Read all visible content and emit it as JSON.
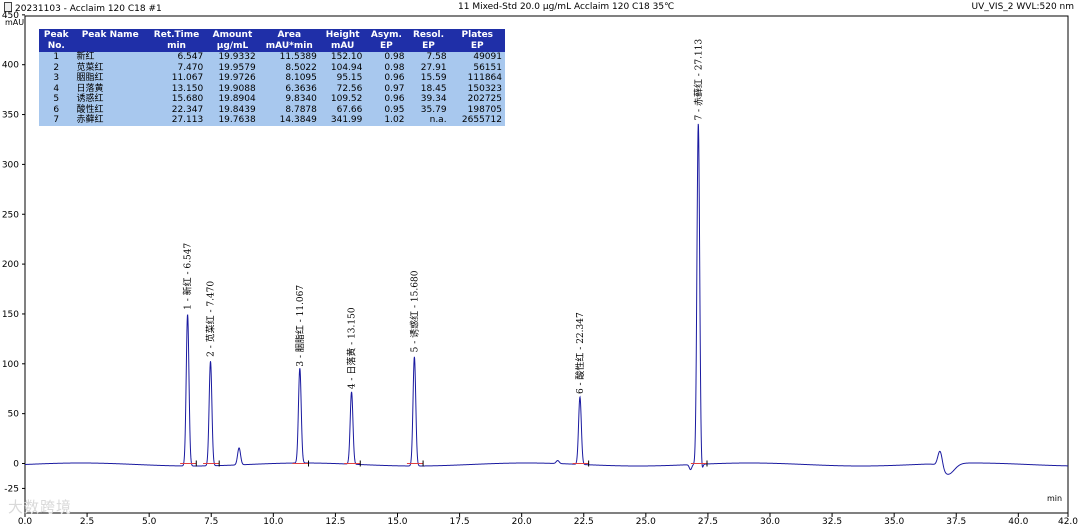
{
  "header": {
    "left": "20231103 - Acclaim 120 C18 #1",
    "middle": "11 Mixed-Std 20.0 µg/mL Acclaim  120  C18  35℃",
    "right": "UV_VIS_2 WVL:520 nm"
  },
  "watermark": "大数跨境",
  "peak_table": {
    "columns": [
      [
        "Peak",
        "No."
      ],
      [
        "Peak Name",
        ""
      ],
      [
        "Ret.Time",
        "min"
      ],
      [
        "Amount",
        "µg/mL"
      ],
      [
        "Area",
        "mAU*min"
      ],
      [
        "Height",
        "mAU"
      ],
      [
        "Asym.",
        "EP"
      ],
      [
        "Resol.",
        "EP"
      ],
      [
        "Plates",
        "EP"
      ]
    ],
    "rows": [
      [
        "1",
        "新红",
        "6.547",
        "19.9332",
        "11.5389",
        "152.10",
        "0.98",
        "7.58",
        "49091"
      ],
      [
        "2",
        "苋菜红",
        "7.470",
        "19.9579",
        "8.5022",
        "104.94",
        "0.98",
        "27.91",
        "56151"
      ],
      [
        "3",
        "胭脂红",
        "11.067",
        "19.9726",
        "8.1095",
        "95.15",
        "0.96",
        "15.59",
        "111864"
      ],
      [
        "4",
        "日落黄",
        "13.150",
        "19.9088",
        "6.3636",
        "72.56",
        "0.97",
        "18.45",
        "150323"
      ],
      [
        "5",
        "诱惑红",
        "15.680",
        "19.8904",
        "9.8340",
        "109.52",
        "0.96",
        "39.34",
        "202725"
      ],
      [
        "6",
        "酸性红",
        "22.347",
        "19.8439",
        "8.7878",
        "67.66",
        "0.95",
        "35.79",
        "198705"
      ],
      [
        "7",
        "赤藓红",
        "27.113",
        "19.7638",
        "14.3849",
        "341.99",
        "1.02",
        "n.a.",
        "2655712"
      ]
    ]
  },
  "chart_data": {
    "type": "line",
    "xlabel": "min",
    "ylabel": "mAU",
    "xlim": [
      0.0,
      42.0
    ],
    "ylim": [
      -25,
      450
    ],
    "x_ticks": [
      "0.0",
      "2.5",
      "5.0",
      "7.5",
      "10.0",
      "12.5",
      "15.0",
      "17.5",
      "20.0",
      "22.5",
      "25.0",
      "27.5",
      "30.0",
      "32.5",
      "35.0",
      "37.5",
      "40.0",
      "42.0"
    ],
    "x_tick_values": [
      0,
      2.5,
      5,
      7.5,
      10,
      12.5,
      15,
      17.5,
      20,
      22.5,
      25,
      27.5,
      30,
      32.5,
      35,
      37.5,
      40,
      42
    ],
    "y_ticks": [
      -25,
      0,
      50,
      100,
      150,
      200,
      250,
      300,
      350,
      400,
      450
    ],
    "series_color": "#1a1aa0",
    "peaks": [
      {
        "rt": 6.547,
        "height": 152.1,
        "label": "1 - 新红 - 6.547"
      },
      {
        "rt": 7.47,
        "height": 104.94,
        "label": "2 - 苋菜红 - 7.470"
      },
      {
        "rt": 11.067,
        "height": 95.15,
        "label": "3 - 胭脂红 - 11.067"
      },
      {
        "rt": 13.15,
        "height": 72.56,
        "label": "4 - 日落黄 - 13.150"
      },
      {
        "rt": 15.68,
        "height": 109.52,
        "label": "5 - 诱惑红 - 15.680"
      },
      {
        "rt": 22.347,
        "height": 67.66,
        "label": "6 - 酸性红 - 22.347"
      },
      {
        "rt": 27.113,
        "height": 341.99,
        "label": "7 - 赤藓红 - 27.113"
      }
    ],
    "minor_peaks": [
      {
        "rt": 8.62,
        "height": 17
      },
      {
        "rt": 21.45,
        "height": 3
      },
      {
        "rt": 36.85,
        "height": 17
      }
    ]
  }
}
